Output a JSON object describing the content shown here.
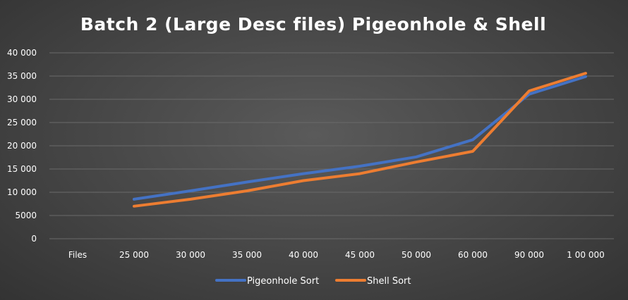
{
  "chart_data": {
    "type": "line",
    "title": "Batch 2 (Large Desc files) Pigeonhole & Shell",
    "xlabel": "",
    "ylabel": "",
    "categories": [
      "Files",
      "25000",
      "30000",
      "35000",
      "40000",
      "45000",
      "50000",
      "60000",
      "90000",
      "100000"
    ],
    "category_labels": [
      "Files",
      "25 000",
      "30 000",
      "35 000",
      "40 000",
      "45 000",
      "50 000",
      "60 000",
      "90 000",
      "1 00 000"
    ],
    "ylim": [
      0,
      40000
    ],
    "yticks": [
      0,
      5000,
      10000,
      15000,
      20000,
      25000,
      30000,
      35000,
      40000
    ],
    "ytick_labels": [
      "0",
      "5000",
      "10 000",
      "15 000",
      "20 000",
      "25 000",
      "30 000",
      "35 000",
      "40 000"
    ],
    "grid": true,
    "legend_position": "bottom",
    "series": [
      {
        "name": "Pigeonhole Sort",
        "color": "#4472C4",
        "values": [
          null,
          8500,
          10300,
          12200,
          14000,
          15600,
          17600,
          21300,
          31100,
          34900
        ]
      },
      {
        "name": "Shell Sort",
        "color": "#ED7D31",
        "values": [
          null,
          7000,
          8500,
          10300,
          12500,
          14000,
          16500,
          18800,
          31800,
          35600
        ]
      }
    ]
  }
}
